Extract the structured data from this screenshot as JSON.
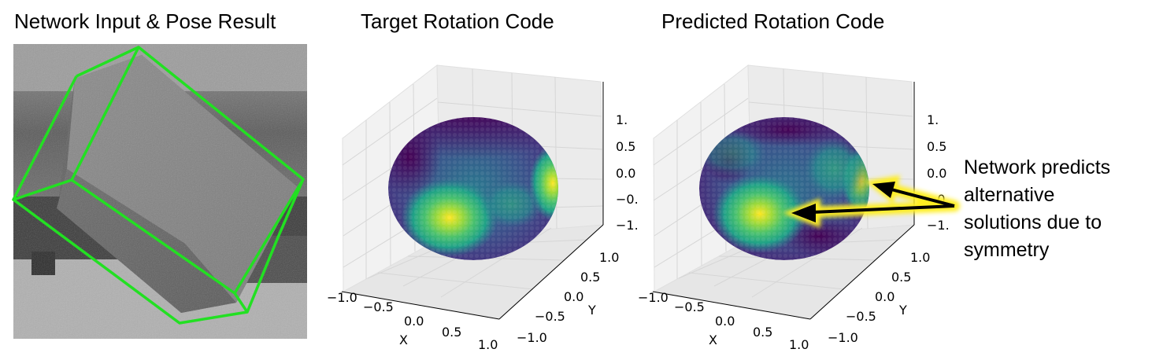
{
  "panels": {
    "input": {
      "title": "Network Input & Pose Result"
    },
    "target": {
      "title": "Target Rotation Code"
    },
    "predicted": {
      "title": "Predicted Rotation Code"
    }
  },
  "axes": {
    "x_label": "X",
    "y_label": "Y",
    "x_ticks": [
      "−1.0",
      "−0.5",
      "0.0",
      "0.5",
      "1.0"
    ],
    "y_ticks": [
      "−1.0",
      "−0.5",
      "0.0",
      "0.5",
      "1.0"
    ],
    "z_ticks": [
      "1.",
      "0.5",
      "0.0",
      "−0.",
      "−1."
    ]
  },
  "annotation": {
    "lines": [
      "Network predicts",
      "alternative",
      "solutions due to",
      "symmetry"
    ]
  },
  "colors": {
    "pose_box": "#22e022",
    "arrow": "#000000",
    "arrow_glow": "#ffee22",
    "sphere_low": "#44045a",
    "sphere_mid": "#2d8b8c",
    "sphere_high": "#fde724"
  }
}
